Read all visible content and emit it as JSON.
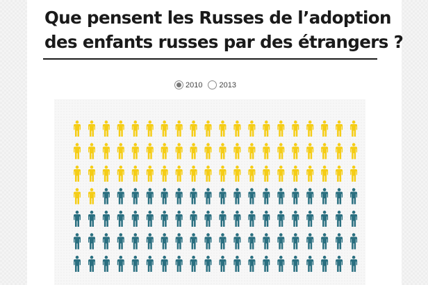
{
  "header": {
    "title_line1": "Que pensent les Russes de l’adoption",
    "title_line2": "des enfants russes par des étrangers ?"
  },
  "years": {
    "options": [
      {
        "label": "2010",
        "selected": true
      },
      {
        "label": "2013",
        "selected": false
      }
    ]
  },
  "chart_data": {
    "type": "pictogram",
    "icon": "person-icon",
    "columns": 20,
    "rows_visible": 7,
    "categories": [
      "yellow",
      "teal"
    ],
    "values": [
      62,
      78
    ],
    "colors": {
      "yellow": "#f5cd16",
      "teal": "#2a6f80"
    }
  }
}
